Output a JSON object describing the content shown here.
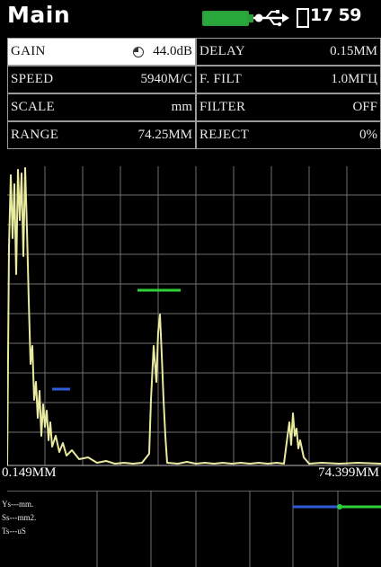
{
  "header": {
    "title": "Main",
    "time": "17 59",
    "battery_color": "#29a83c",
    "icons": [
      "battery-icon",
      "usb-icon",
      "sd-card-icon"
    ]
  },
  "params": {
    "rows": [
      {
        "left_label": "GAIN",
        "left_value": "44.0dB",
        "right_label": "DELAY",
        "right_value": "0.15MM"
      },
      {
        "left_label": "SPEED",
        "left_value": "5940M/C",
        "right_label": "F. FILT",
        "right_value": "1.0МГЦ"
      },
      {
        "left_label": "SCALE",
        "left_value": "mm",
        "right_label": "FILTER",
        "right_value": "OFF"
      },
      {
        "left_label": "RANGE",
        "left_value": "74.25MM",
        "right_label": "REJECT",
        "right_value": "0%"
      }
    ]
  },
  "display": {
    "start_label": "0.149MM",
    "end_label": "74.399MM",
    "trace_color": "#e9e9a0",
    "gate_color": "#2fd03a",
    "marker_color": "#2f5bd8"
  },
  "readouts": {
    "lines": [
      "Ys---mm.",
      "Ss---mm2.",
      "Ts---uS"
    ]
  }
}
